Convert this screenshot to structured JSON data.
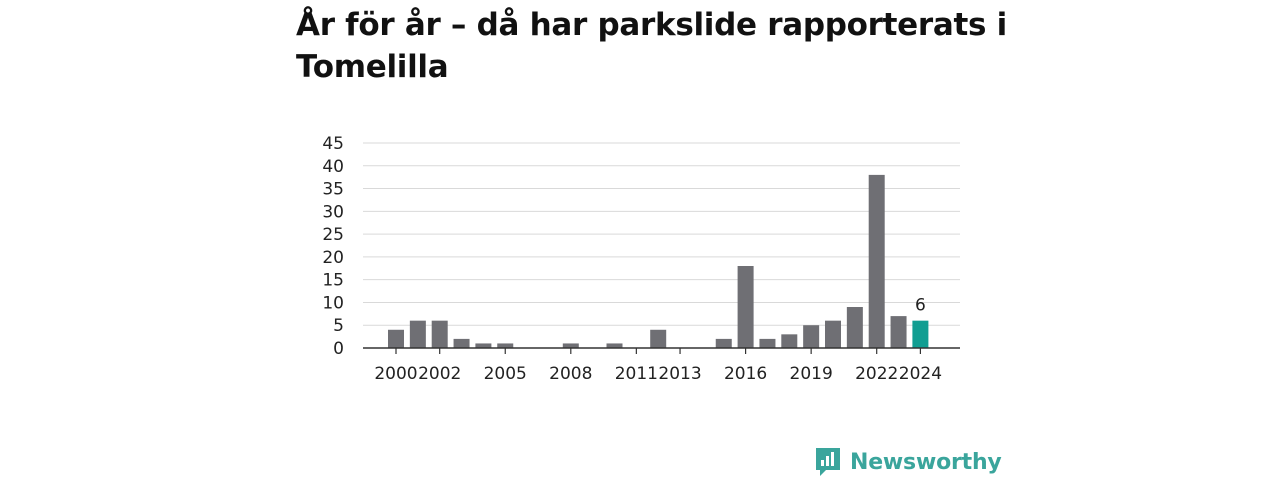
{
  "title": "År för år – då har parkslide rapporterats i Tomelilla",
  "brand": {
    "name": "Newsworthy",
    "color": "#3aa59c",
    "icon": "newsworthy-logo-icon"
  },
  "colors": {
    "bar": "#6f6f74",
    "highlight": "#119e92",
    "grid": "#d9d9d9",
    "axis": "#333333"
  },
  "chart_data": {
    "type": "bar",
    "title": "År för år – då har parkslide rapporterats i Tomelilla",
    "xlabel": "",
    "ylabel": "",
    "categories": [
      "2000",
      "2001",
      "2002",
      "2003",
      "2004",
      "2005",
      "2006",
      "2007",
      "2008",
      "2009",
      "2010",
      "2011",
      "2012",
      "2013",
      "2014",
      "2015",
      "2016",
      "2017",
      "2018",
      "2019",
      "2020",
      "2021",
      "2022",
      "2023",
      "2024"
    ],
    "values": [
      4,
      6,
      6,
      2,
      1,
      1,
      0,
      0,
      1,
      0,
      1,
      0,
      4,
      0,
      0,
      2,
      18,
      2,
      3,
      5,
      6,
      9,
      38,
      7,
      6
    ],
    "highlight_index": 24,
    "data_labels": [
      {
        "index": 24,
        "text": "6"
      }
    ],
    "xtick_labels": [
      "2000",
      "2002",
      "2005",
      "2008",
      "2011",
      "2013",
      "2016",
      "2019",
      "2022",
      "2024"
    ],
    "yticks": [
      0,
      5,
      10,
      15,
      20,
      25,
      30,
      35,
      40,
      45
    ],
    "ylim": [
      0,
      45
    ],
    "grid": true,
    "legend": "none"
  }
}
